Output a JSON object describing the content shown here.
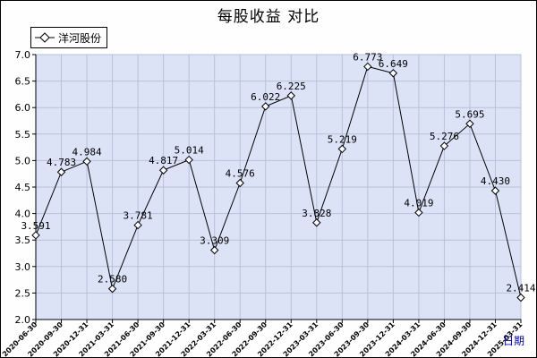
{
  "chart_data": {
    "type": "line",
    "title": "每股收益 对比",
    "xlabel": "日期",
    "ylabel": "",
    "ylim": [
      2.0,
      7.0
    ],
    "yticks": [
      "2.0",
      "2.5",
      "3.0",
      "3.5",
      "4.0",
      "4.5",
      "5.0",
      "5.5",
      "6.0",
      "6.5",
      "7.0"
    ],
    "grid": true,
    "legend_position": "top-left",
    "colors": {
      "plot_bg": "#dde3f7",
      "grid": "#b8c0dc",
      "line": "#000000",
      "marker_fill": "#ffffff"
    },
    "categories": [
      "2020-06-30",
      "2020-09-30",
      "2020-12-31",
      "2021-03-31",
      "2021-06-30",
      "2021-09-30",
      "2021-12-31",
      "2022-03-31",
      "2022-06-30",
      "2022-09-30",
      "2022-12-31",
      "2023-03-31",
      "2023-06-30",
      "2023-09-30",
      "2023-12-31",
      "2024-03-31",
      "2024-06-30",
      "2024-09-30",
      "2024-12-31",
      "2025-03-31"
    ],
    "series": [
      {
        "name": "洋河股份",
        "values": [
          3.591,
          4.783,
          4.984,
          2.58,
          3.781,
          4.817,
          5.014,
          3.309,
          4.576,
          6.022,
          6.225,
          3.828,
          5.219,
          6.773,
          6.649,
          4.019,
          5.276,
          5.695,
          4.43,
          2.414
        ],
        "labels": [
          "3.591",
          "4.783",
          "4.984",
          "2.580",
          "3.781",
          "4.817",
          "5.014",
          "3.309",
          "4.576",
          "6.022",
          "6.225",
          "3.828",
          "5.219",
          "6.773",
          "6.649",
          "4.019",
          "5.276",
          "5.695",
          "4.430",
          "2.414"
        ]
      }
    ]
  }
}
